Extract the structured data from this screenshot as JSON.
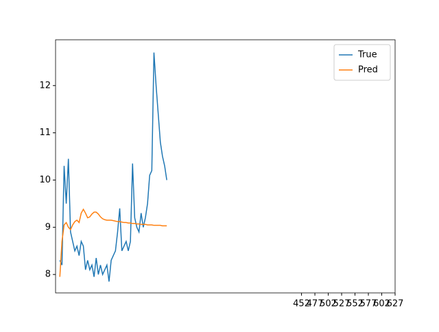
{
  "chart_data": {
    "type": "line",
    "x": [
      0,
      4,
      8,
      12,
      16,
      20,
      24,
      28,
      32,
      36,
      40,
      44,
      48,
      52,
      56,
      60,
      64,
      68,
      72,
      76,
      80,
      84,
      88,
      92,
      96,
      100,
      104,
      108,
      112,
      116,
      120,
      124,
      128,
      132,
      136,
      140,
      144,
      148,
      152,
      156,
      160,
      164,
      168,
      172,
      176,
      180,
      184,
      188,
      192,
      196,
      200
    ],
    "series": [
      {
        "name": "True",
        "color": "#1f77b4",
        "values": [
          8.3,
          8.2,
          10.3,
          9.5,
          10.45,
          8.9,
          8.7,
          8.5,
          8.6,
          8.4,
          8.7,
          8.6,
          8.1,
          8.3,
          8.1,
          8.2,
          7.95,
          8.35,
          8.0,
          8.2,
          8.0,
          8.1,
          8.2,
          7.85,
          8.3,
          8.4,
          8.5,
          8.9,
          9.4,
          8.5,
          8.6,
          8.7,
          8.5,
          8.7,
          10.35,
          9.2,
          9.0,
          8.9,
          9.3,
          9.0,
          9.2,
          9.5,
          10.1,
          10.2,
          12.7,
          12.0,
          11.4,
          10.8,
          10.5,
          10.3,
          10.0
        ]
      },
      {
        "name": "Pred",
        "color": "#ff7f0e",
        "values": [
          7.95,
          8.7,
          9.05,
          9.1,
          9.0,
          8.95,
          9.05,
          9.12,
          9.15,
          9.1,
          9.3,
          9.38,
          9.3,
          9.2,
          9.22,
          9.28,
          9.32,
          9.32,
          9.28,
          9.22,
          9.18,
          9.16,
          9.15,
          9.15,
          9.15,
          9.14,
          9.13,
          9.12,
          9.12,
          9.11,
          9.1,
          9.1,
          9.09,
          9.09,
          9.08,
          9.08,
          9.07,
          9.07,
          9.06,
          9.06,
          9.06,
          9.05,
          9.05,
          9.05,
          9.04,
          9.04,
          9.04,
          9.04,
          9.03,
          9.03,
          9.03
        ]
      }
    ],
    "xlim": [
      -8,
      627
    ],
    "xticks": [
      452,
      477,
      502,
      527,
      552,
      577,
      602,
      627
    ],
    "ylim": [
      7.61,
      12.97
    ],
    "yticks": [
      8,
      9,
      10,
      11,
      12
    ],
    "legend": "upper right"
  }
}
